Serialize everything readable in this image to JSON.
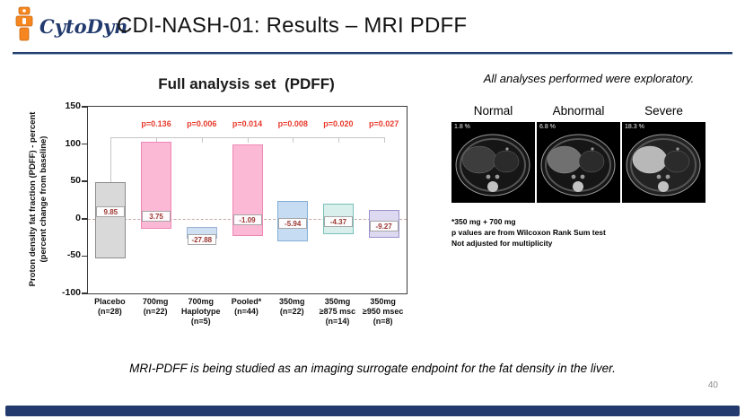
{
  "header": {
    "logo_text": "CytoDyn",
    "title": "CDI-NASH-01: Results – MRI PDFF"
  },
  "chart_data": {
    "type": "bar",
    "title": "Full analysis set  (PDFF)",
    "ylabel_line1": "Proton density fat fraction (PDFF) - percent",
    "ylabel_line2": "(percent change from baseline)",
    "ylim": [
      -100,
      150
    ],
    "yticks": [
      150,
      100,
      50,
      0,
      -50,
      -100
    ],
    "grid": "off",
    "p_color": "#e8392b",
    "value_label_color": "#9c3732",
    "bars": [
      {
        "category": [
          "Placebo",
          "(n=28)"
        ],
        "low": -53,
        "high": 49,
        "value": 9.85,
        "value_label": "9.85",
        "fill": "#d9d9d9",
        "stroke": "#8c8c8c",
        "p": null
      },
      {
        "category": [
          "700mg",
          "(n=22)"
        ],
        "low": -14,
        "high": 103,
        "value": 3.75,
        "value_label": "3.75",
        "fill": "#fcb9d6",
        "stroke": "#ef87b5",
        "p": "p=0.136"
      },
      {
        "category": [
          "700mg",
          "Haplotype",
          "(n=5)"
        ],
        "low": -27,
        "high": -11,
        "value": -27.88,
        "value_label": "-27.88",
        "fill": "#cfe0f3",
        "stroke": "#9db4d8",
        "p": "p=0.006"
      },
      {
        "category": [
          "Pooled*",
          "(n=44)"
        ],
        "low": -23,
        "high": 100,
        "value": -1.09,
        "value_label": "-1.09",
        "fill": "#fcb9d6",
        "stroke": "#ef87b5",
        "p": "p=0.014"
      },
      {
        "category": [
          "350mg",
          "(n=22)"
        ],
        "low": -30,
        "high": 24,
        "value": -5.94,
        "value_label": "-5.94",
        "fill": "#c6dcf2",
        "stroke": "#85aed6",
        "p": "p=0.008"
      },
      {
        "category": [
          "350mg",
          "≥875 msc",
          "(n=14)"
        ],
        "low": -21,
        "high": 20,
        "value": -4.37,
        "value_label": "-4.37",
        "fill": "#d9efec",
        "stroke": "#79c0b8",
        "p": "p=0.020"
      },
      {
        "category": [
          "350mg",
          "≥950 msec",
          "(n=8)"
        ],
        "low": -25,
        "high": 12,
        "value": -9.27,
        "value_label": "-9.27",
        "fill": "#dcd9f0",
        "stroke": "#9b93cc",
        "p": "p=0.027"
      }
    ]
  },
  "right_panel": {
    "exploratory_note": "All analyses performed were exploratory.",
    "mri": [
      {
        "label": "Normal",
        "percent": "1.8 %"
      },
      {
        "label": "Abnormal",
        "percent": "6.8 %"
      },
      {
        "label": "Severe",
        "percent": "18.3 %"
      }
    ],
    "footnotes": [
      "*350 mg + 700 mg",
      "p values are from Wilcoxon Rank Sum test",
      "Not adjusted for multiplicity"
    ]
  },
  "footer": {
    "note": "MRI-PDFF is being studied as an imaging surrogate endpoint for the fat density in the liver.",
    "page_number": "40"
  }
}
